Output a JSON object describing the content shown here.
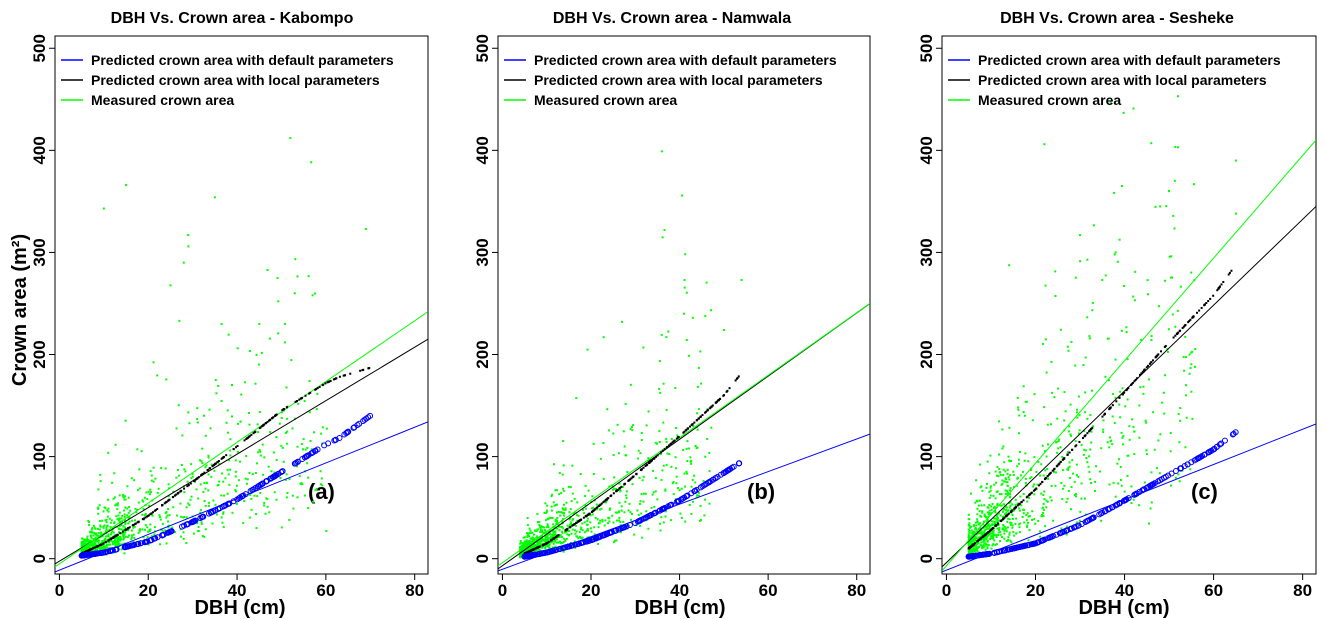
{
  "chart_data": [
    {
      "type": "scatter",
      "title": "DBH Vs. Crown area - Kabompo",
      "xlabel": "DBH (cm)",
      "ylabel": "Crown area (m²)",
      "panel_label": "(a)",
      "xlim": [
        -1,
        83
      ],
      "ylim": [
        -15,
        512
      ],
      "xticks": [
        "0",
        "20",
        "40",
        "60",
        "80"
      ],
      "yticks": [
        "0",
        "100",
        "200",
        "300",
        "400",
        "500"
      ],
      "legend": [
        "Predicted crown area with default parameters",
        "Predicted crown area with local parameters",
        "Measured crown area"
      ],
      "legend_position": "top-left",
      "colors": {
        "default": "#0000ff",
        "local": "#000000",
        "measured": "#00ff00"
      },
      "lines": [
        {
          "series": "Predicted crown area with default parameters",
          "x": [
            -1,
            83
          ],
          "y": [
            -13,
            134
          ]
        },
        {
          "series": "Predicted crown area with local parameters",
          "x": [
            -1,
            83
          ],
          "y": [
            -5,
            215
          ]
        },
        {
          "series": "Measured crown area",
          "x": [
            -1,
            83
          ],
          "y": [
            -8,
            242
          ]
        }
      ],
      "default_curve": {
        "x": [
          5,
          10,
          20,
          30,
          40,
          50,
          60,
          63,
          70
        ],
        "y": [
          3,
          6,
          17,
          36,
          58,
          85,
          112,
          118,
          140
        ]
      },
      "local_curve": {
        "x": [
          5,
          10,
          20,
          30,
          40,
          50,
          60,
          63,
          70
        ],
        "y": [
          5,
          15,
          42,
          75,
          110,
          145,
          172,
          178,
          187
        ]
      },
      "measured_summary": {
        "dbh_range": [
          5,
          70
        ],
        "crown_area_range": [
          0,
          412
        ]
      },
      "outliers": [
        [
          52,
          412
        ],
        [
          15,
          366
        ],
        [
          35,
          354
        ],
        [
          10,
          343
        ],
        [
          69,
          323
        ],
        [
          29,
          317
        ],
        [
          28,
          290
        ],
        [
          53,
          260
        ],
        [
          57,
          258
        ],
        [
          45,
          230
        ],
        [
          27,
          233
        ]
      ]
    },
    {
      "type": "scatter",
      "title": "DBH Vs. Crown area - Namwala",
      "xlabel": "DBH (cm)",
      "ylabel": "",
      "panel_label": "(b)",
      "xlim": [
        -1,
        83
      ],
      "ylim": [
        -15,
        512
      ],
      "xticks": [
        "0",
        "20",
        "40",
        "60",
        "80"
      ],
      "yticks": [
        "0",
        "100",
        "200",
        "300",
        "400",
        "500"
      ],
      "legend": [
        "Predicted crown area with default parameters",
        "Predicted crown area with local parameters",
        "Measured crown area"
      ],
      "legend_position": "top-left",
      "colors": {
        "default": "#0000ff",
        "local": "#000000",
        "measured": "#00ff00"
      },
      "lines": [
        {
          "series": "Predicted crown area with default parameters",
          "x": [
            -1,
            83
          ],
          "y": [
            -12,
            122
          ]
        },
        {
          "series": "Predicted crown area with local parameters",
          "x": [
            -1,
            83
          ],
          "y": [
            -10,
            250
          ]
        },
        {
          "series": "Measured crown area",
          "x": [
            -1,
            83
          ],
          "y": [
            -7,
            250
          ]
        }
      ],
      "default_curve": {
        "x": [
          5,
          10,
          20,
          30,
          40,
          50,
          54
        ],
        "y": [
          2,
          6,
          18,
          35,
          57,
          84,
          95
        ]
      },
      "local_curve": {
        "x": [
          5,
          10,
          20,
          30,
          40,
          50,
          54
        ],
        "y": [
          5,
          15,
          45,
          82,
          120,
          160,
          182
        ]
      },
      "measured_summary": {
        "dbh_range": [
          4,
          55
        ],
        "crown_area_range": [
          0,
          399
        ]
      },
      "outliers": [
        [
          36,
          399
        ],
        [
          54,
          273
        ],
        [
          41,
          240
        ],
        [
          43,
          236
        ],
        [
          27,
          232
        ],
        [
          50,
          224
        ]
      ]
    },
    {
      "type": "scatter",
      "title": "DBH Vs. Crown area - Sesheke",
      "xlabel": "DBH (cm)",
      "ylabel": "",
      "panel_label": "(c)",
      "xlim": [
        -1,
        83
      ],
      "ylim": [
        -15,
        512
      ],
      "xticks": [
        "0",
        "20",
        "40",
        "60",
        "80"
      ],
      "yticks": [
        "0",
        "100",
        "200",
        "300",
        "400",
        "500"
      ],
      "legend": [
        "Predicted crown area with default parameters",
        "Predicted crown area with local parameters",
        "Measured crown area"
      ],
      "legend_position": "top-left",
      "colors": {
        "default": "#0000ff",
        "local": "#000000",
        "measured": "#00ff00"
      },
      "lines": [
        {
          "series": "Predicted crown area with default parameters",
          "x": [
            -1,
            83
          ],
          "y": [
            -13,
            132
          ]
        },
        {
          "series": "Predicted crown area with local parameters",
          "x": [
            -1,
            83
          ],
          "y": [
            -8,
            345
          ]
        },
        {
          "series": "Measured crown area",
          "x": [
            -1,
            83
          ],
          "y": [
            -12,
            410
          ]
        }
      ],
      "default_curve": {
        "x": [
          5,
          10,
          20,
          30,
          40,
          50,
          60,
          65
        ],
        "y": [
          2,
          5,
          15,
          33,
          57,
          82,
          107,
          124
        ]
      },
      "local_curve": {
        "x": [
          5,
          10,
          20,
          30,
          40,
          50,
          60,
          65
        ],
        "y": [
          10,
          28,
          68,
          115,
          163,
          212,
          258,
          288
        ]
      },
      "measured_summary": {
        "dbh_range": [
          5,
          65
        ],
        "crown_area_range": [
          0,
          453
        ]
      },
      "outliers": [
        [
          52,
          453
        ],
        [
          42,
          441
        ],
        [
          46,
          407
        ],
        [
          22,
          406
        ],
        [
          52,
          403
        ],
        [
          65,
          390
        ],
        [
          50,
          360
        ],
        [
          48,
          345
        ],
        [
          30,
          317
        ],
        [
          65,
          338
        ],
        [
          38,
          300
        ],
        [
          35,
          273
        ]
      ]
    }
  ]
}
